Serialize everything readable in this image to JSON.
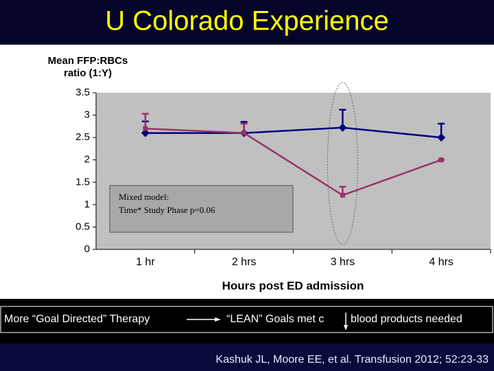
{
  "slide": {
    "title": "U Colorado Experience",
    "left_note": "More “Goal Directed” Therapy",
    "middle_note": "“LEAN” Goals met c",
    "right_note": "blood products needed",
    "citation": "Kashuk JL, Moore EE, et al. Transfusion 2012; 52:23-33"
  },
  "chart_data": {
    "type": "line",
    "y_label": [
      "Mean FFP:RBCs",
      "ratio (1:Y)"
    ],
    "x_label": "Hours post ED admission",
    "annotation": [
      "Mixed model:",
      "Time* Study Phase p=0.06"
    ],
    "categories": [
      "1 hr",
      "2 hrs",
      "3 hrs",
      "4 hrs"
    ],
    "series": [
      {
        "color": "#000080",
        "marker": "diamond",
        "values": [
          2.6,
          2.6,
          2.72,
          2.5
        ],
        "errors": [
          0.26,
          0.25,
          0.4,
          0.31
        ]
      },
      {
        "color": "#993366",
        "marker": "square",
        "values": [
          2.7,
          2.6,
          1.21,
          2.0
        ],
        "errors": [
          0.33,
          0.21,
          0.19,
          0
        ]
      }
    ],
    "ylim": [
      0,
      3.5
    ],
    "yticks": [
      0,
      0.5,
      1,
      1.5,
      2,
      2.5,
      3,
      3.5
    ],
    "grid": false
  }
}
